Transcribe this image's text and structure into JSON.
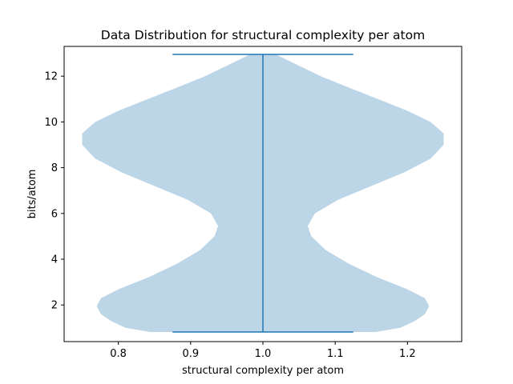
{
  "chart_data": {
    "type": "violin",
    "title": "Data Distribution for structural complexity per atom",
    "xlabel": "structural complexity per atom",
    "ylabel": "bits/atom",
    "xlim": [
      0.725,
      1.275
    ],
    "ylim": [
      0.4,
      13.3
    ],
    "x_ticks": [
      "0.8",
      "0.9",
      "1.0",
      "1.1",
      "1.2"
    ],
    "y_ticks": [
      "2",
      "4",
      "6",
      "8",
      "10",
      "12"
    ],
    "grid": false,
    "series": [
      {
        "position": 1.0,
        "min": 0.82,
        "max": 12.95,
        "width": 0.5,
        "body_color": "#bcd6e8",
        "line_color": "#1f77b4",
        "density_profile": [
          [
            0.82,
            0.156
          ],
          [
            1.0,
            0.19
          ],
          [
            1.3,
            0.21
          ],
          [
            1.6,
            0.224
          ],
          [
            1.95,
            0.23
          ],
          [
            2.3,
            0.224
          ],
          [
            2.7,
            0.199
          ],
          [
            3.2,
            0.159
          ],
          [
            3.8,
            0.119
          ],
          [
            4.4,
            0.087
          ],
          [
            5.0,
            0.067
          ],
          [
            5.45,
            0.062
          ],
          [
            6.0,
            0.072
          ],
          [
            6.6,
            0.104
          ],
          [
            7.2,
            0.15
          ],
          [
            7.8,
            0.196
          ],
          [
            8.4,
            0.232
          ],
          [
            9.0,
            0.25
          ],
          [
            9.5,
            0.25
          ],
          [
            10.0,
            0.232
          ],
          [
            10.5,
            0.199
          ],
          [
            11.0,
            0.159
          ],
          [
            11.5,
            0.119
          ],
          [
            12.0,
            0.08
          ],
          [
            12.5,
            0.047
          ],
          [
            12.95,
            0.018
          ]
        ]
      }
    ]
  }
}
